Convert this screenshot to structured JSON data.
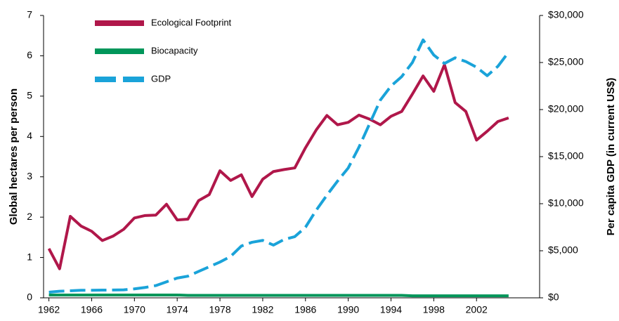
{
  "chart_data": {
    "type": "line",
    "ylabel": "Global hectares per person",
    "y2label": "Per capita GDP (in current US$)",
    "x": [
      1962,
      1963,
      1964,
      1965,
      1966,
      1967,
      1968,
      1969,
      1970,
      1971,
      1972,
      1973,
      1974,
      1975,
      1976,
      1977,
      1978,
      1979,
      1980,
      1981,
      1982,
      1983,
      1984,
      1985,
      1986,
      1987,
      1988,
      1989,
      1990,
      1991,
      1992,
      1993,
      1994,
      1995,
      1996,
      1997,
      1998,
      1999,
      2000,
      2001,
      2002,
      2003,
      2004,
      2005
    ],
    "xlim": [
      1961.5,
      2007.9
    ],
    "xticks": [
      1962,
      1966,
      1970,
      1974,
      1978,
      1982,
      1986,
      1990,
      1994,
      1998,
      2002
    ],
    "ylim": [
      0,
      7
    ],
    "yticks": [
      0,
      1,
      2,
      3,
      4,
      5,
      6,
      7
    ],
    "y2lim": [
      0,
      30000
    ],
    "y2ticks": [
      {
        "value": 0,
        "label": "$0"
      },
      {
        "value": 5000,
        "label": "$5,000"
      },
      {
        "value": 10000,
        "label": "$10,000"
      },
      {
        "value": 15000,
        "label": "$15,000"
      },
      {
        "value": 20000,
        "label": "$20,000"
      },
      {
        "value": 25000,
        "label": "$25,000"
      },
      {
        "value": 30000,
        "label": "$30,000"
      }
    ],
    "legend": "upper left",
    "series": [
      {
        "name": "Ecological Footprint",
        "color": "#b0174a",
        "dash": "solid",
        "values": [
          1.22,
          0.72,
          2.02,
          1.78,
          1.65,
          1.42,
          1.53,
          1.7,
          1.98,
          2.04,
          2.05,
          2.32,
          1.93,
          1.95,
          2.41,
          2.56,
          3.15,
          2.91,
          3.05,
          2.51,
          2.94,
          3.13,
          3.18,
          3.22,
          3.72,
          4.16,
          4.52,
          4.29,
          4.35,
          4.53,
          4.43,
          4.29,
          4.5,
          4.62,
          5.05,
          5.5,
          5.12,
          5.78,
          4.84,
          4.62,
          3.91,
          4.13,
          4.37,
          4.46
        ]
      },
      {
        "name": "Biocapacity",
        "color": "#00965a",
        "dash": "solid",
        "values": [
          0.07,
          0.07,
          0.07,
          0.07,
          0.07,
          0.07,
          0.07,
          0.07,
          0.07,
          0.07,
          0.07,
          0.07,
          0.07,
          0.06,
          0.06,
          0.06,
          0.06,
          0.06,
          0.06,
          0.06,
          0.06,
          0.06,
          0.06,
          0.06,
          0.06,
          0.06,
          0.06,
          0.06,
          0.06,
          0.06,
          0.06,
          0.06,
          0.06,
          0.06,
          0.05,
          0.05,
          0.05,
          0.05,
          0.05,
          0.05,
          0.05,
          0.05,
          0.05,
          0.05
        ]
      },
      {
        "name": "GDP",
        "color": "#1aa3d9",
        "dash": "dashed",
        "axis": "y2",
        "values": [
          600,
          700,
          750,
          800,
          800,
          820,
          830,
          850,
          950,
          1100,
          1300,
          1700,
          2100,
          2300,
          2800,
          3300,
          3800,
          4400,
          5500,
          5900,
          6100,
          5600,
          6200,
          6500,
          7500,
          9300,
          10900,
          12400,
          13800,
          16000,
          18500,
          21000,
          22500,
          23500,
          25000,
          27400,
          25800,
          24900,
          25500,
          25100,
          24500,
          23600,
          24600,
          26100
        ]
      }
    ]
  }
}
